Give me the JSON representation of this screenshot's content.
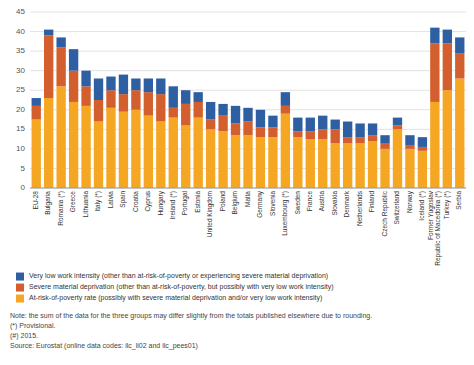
{
  "chart_data": {
    "type": "bar",
    "stacked": true,
    "grid": true,
    "legend": "bottom",
    "categories": [
      "EU-28",
      "Bulgaria",
      "Romania (*)",
      "Greece",
      "Lithuania",
      "Italy (*)",
      "Latvia",
      "Spain",
      "Croatia",
      "Cyprus",
      "Hungary",
      "Ireland (*)",
      "Portugal",
      "Estonia",
      "United Kingdom",
      "Poland",
      "Belgium",
      "Malta",
      "Germany",
      "Slovenia",
      "Luxembourg (*)",
      "Sweden",
      "France",
      "Austria",
      "Slovakia",
      "Denmark",
      "Netherlands",
      "Finland",
      "Czech Republic",
      "Switzerland",
      "Norway",
      "Iceland (*)",
      "Former Yugoslav\nRepublic of Macedonia (*)",
      "Turkey (*)",
      "Serbia"
    ],
    "series": [
      {
        "name": "At-risk-of-poverty rate (possibly with severe material deprivation and/or very low work intensity)",
        "color": "#f5a623",
        "values": [
          17.5,
          23.0,
          26.0,
          22.0,
          21.0,
          17.0,
          20.5,
          19.5,
          20.0,
          18.5,
          17.0,
          18.0,
          16.0,
          18.0,
          15.0,
          14.5,
          13.5,
          13.5,
          13.0,
          13.0,
          19.0,
          13.0,
          12.5,
          12.5,
          11.5,
          11.5,
          11.5,
          12.0,
          10.0,
          15.0,
          10.0,
          9.5,
          22.0,
          25.0,
          28.0
        ]
      },
      {
        "name": "Severe material deprivation (other than at-risk-of-poverty, but possibly with very low work intensity)",
        "color": "#d45f2e",
        "values": [
          3.5,
          16.0,
          10.0,
          8.0,
          5.0,
          5.5,
          4.5,
          4.5,
          5.0,
          6.0,
          7.0,
          2.5,
          5.5,
          4.0,
          2.5,
          4.0,
          3.0,
          3.5,
          2.5,
          2.5,
          2.0,
          1.5,
          2.0,
          2.5,
          3.5,
          1.5,
          1.5,
          1.5,
          1.5,
          1.0,
          1.0,
          1.0,
          15.0,
          12.0,
          6.5
        ]
      },
      {
        "name": "Very low work intensity (other than at-risk-of-poverty or experiencing severe material deprivation)",
        "color": "#2e5fa3",
        "values": [
          2.0,
          1.5,
          2.5,
          5.5,
          4.0,
          5.5,
          3.5,
          5.0,
          3.0,
          3.5,
          4.0,
          5.5,
          3.5,
          2.5,
          4.5,
          3.0,
          4.5,
          3.5,
          4.5,
          3.0,
          3.5,
          3.5,
          3.5,
          3.5,
          2.5,
          4.0,
          3.5,
          3.0,
          2.0,
          2.0,
          2.5,
          2.5,
          4.0,
          3.5,
          4.0
        ]
      }
    ],
    "ylim": [
      0,
      45
    ],
    "yticks": [
      0,
      5,
      10,
      15,
      20,
      25,
      30,
      35,
      40,
      45
    ],
    "annotations": [
      "Note: the sum of the data for the three groups may differ slightly from the totals published elsewhere due to rounding.",
      "(*) Provisional.",
      "(#) 2015.",
      "Source: Eurostat (online data codes: ilc_li02 and ilc_pees01)"
    ]
  }
}
